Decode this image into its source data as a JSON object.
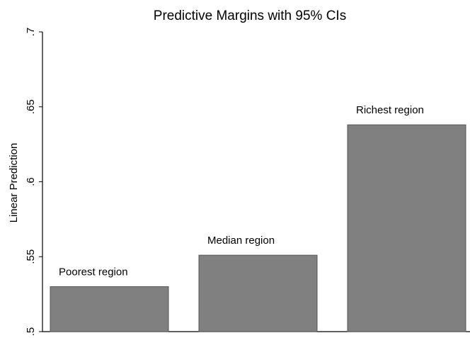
{
  "chart_data": {
    "type": "bar",
    "title": "Predictive Margins with 95% CIs",
    "ylabel": "Linear Prediction",
    "categories": [
      "Poorest region",
      "Median region",
      "Richest region"
    ],
    "values": [
      0.53,
      0.551,
      0.638
    ],
    "color": "#808080",
    "ylim": [
      0.5,
      0.7
    ],
    "yticks": [
      {
        "value": 0.5,
        "label": ".5"
      },
      {
        "value": 0.55,
        "label": ".55"
      },
      {
        "value": 0.6,
        "label": ".6"
      },
      {
        "value": 0.65,
        "label": ".65"
      },
      {
        "value": 0.7,
        "label": ".7"
      }
    ],
    "grid": false
  }
}
